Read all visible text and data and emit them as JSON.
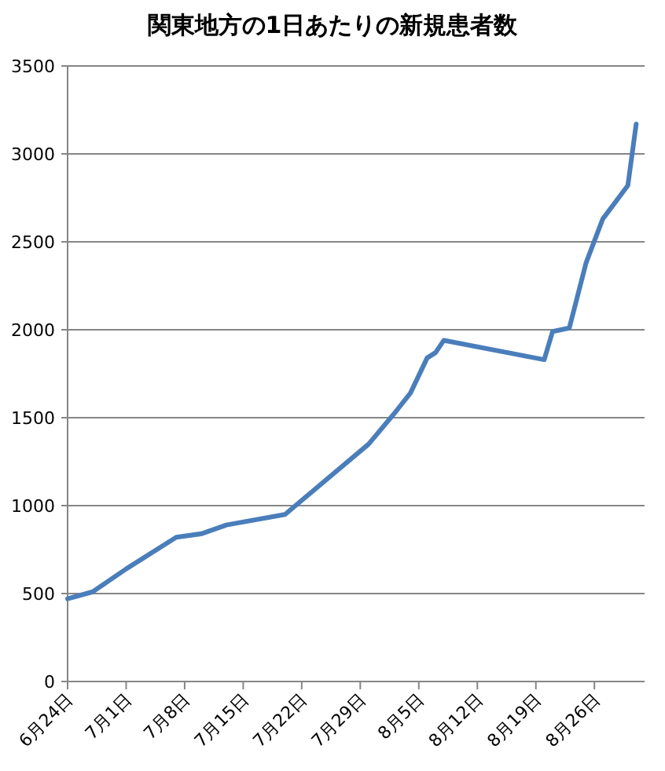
{
  "chart_data": {
    "type": "line",
    "title": "関東地方の1日あたりの新規患者数",
    "x": [
      "--06-24",
      "--06-27",
      "--07-01",
      "--07-07",
      "--07-10",
      "--07-13",
      "--07-20",
      "--07-30",
      "--08-02",
      "--08-04",
      "--08-06",
      "--08-07",
      "--08-08",
      "--08-20",
      "--08-21",
      "--08-23",
      "--08-25",
      "--08-27",
      "--08-30",
      "--08-31"
    ],
    "series": [
      {
        "color": "#4a7ebb",
        "values": [
          470,
          510,
          640,
          820,
          840,
          890,
          950,
          1350,
          1520,
          1640,
          1840,
          1870,
          1940,
          1830,
          1990,
          2010,
          2380,
          2630,
          2820,
          3170
        ]
      }
    ],
    "xlim": [
      "--06-24",
      "--09-01"
    ],
    "xticks": [
      {
        "value": "--06-24",
        "label": "6月24日"
      },
      {
        "value": "--07-01",
        "label": "7月1日"
      },
      {
        "value": "--07-08",
        "label": "7月8日"
      },
      {
        "value": "--07-15",
        "label": "7月15日"
      },
      {
        "value": "--07-22",
        "label": "7月22日"
      },
      {
        "value": "--07-29",
        "label": "7月29日"
      },
      {
        "value": "--08-05",
        "label": "8月5日"
      },
      {
        "value": "--08-12",
        "label": "8月12日"
      },
      {
        "value": "--08-19",
        "label": "8月19日"
      },
      {
        "value": "--08-26",
        "label": "8月26日"
      }
    ],
    "ylim": [
      0,
      3500
    ],
    "yticks": [
      0,
      500,
      1000,
      1500,
      2000,
      2500,
      3000,
      3500
    ],
    "grid": "y",
    "marker": "none",
    "line_style": "solid"
  }
}
